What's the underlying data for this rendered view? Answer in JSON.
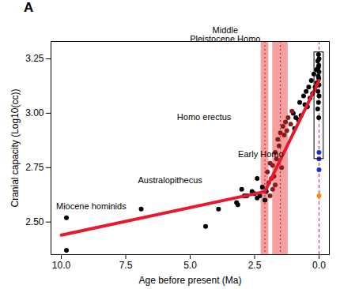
{
  "chart_data": {
    "type": "scatter",
    "title": "A",
    "x_label": "Age before present (Ma)",
    "y_label": "Cranial capacity (Log10(cc))",
    "xlim": [
      10.4,
      -0.4
    ],
    "ylim": [
      2.35,
      3.33
    ],
    "xticks": [
      {
        "value": 10,
        "label": "10.0"
      },
      7.5,
      {
        "value": 5,
        "label": "5.0"
      },
      2.5,
      {
        "value": 0,
        "label": "0.0"
      }
    ],
    "yticks": [
      {
        "value": 2.5,
        "label": "2.50"
      },
      2.75,
      {
        "value": 3,
        "label": "3.00"
      },
      3.25
    ],
    "grid": false,
    "series": [
      {
        "color": "#000000",
        "marker": "circle",
        "x": [
          9.8,
          9.8,
          6.9,
          4.4,
          3.9,
          3.2,
          3.15,
          3.0,
          2.9,
          2.8,
          2.6,
          2.5,
          2.4,
          2.4,
          2.3,
          2.2,
          2.1,
          2.05,
          1.0,
          0.95,
          0.9,
          0.8,
          0.75,
          0.7,
          0.6,
          0.55,
          0.5,
          0.45,
          0.4,
          0.35,
          0.3,
          0.25,
          0.2,
          0.15,
          0.1,
          0.08,
          0.05,
          0.04,
          0.03,
          0.02,
          0.02,
          0.01,
          0.01,
          0.0,
          0.0,
          0.0,
          0.0,
          0.01,
          0.03,
          0.05
        ],
        "values": [
          2.52,
          2.37,
          2.56,
          2.48,
          2.56,
          2.59,
          2.58,
          2.65,
          2.62,
          2.62,
          2.64,
          2.63,
          2.7,
          2.61,
          2.62,
          2.66,
          2.6,
          2.64,
          3.0,
          2.93,
          2.98,
          2.97,
          3.05,
          2.99,
          3.08,
          3.04,
          3.1,
          3.03,
          3.12,
          3.07,
          3.15,
          3.09,
          3.18,
          3.12,
          3.2,
          3.14,
          3.24,
          3.1,
          3.17,
          3.27,
          3.05,
          3.22,
          2.98,
          3.13,
          3.19,
          3.25,
          3.08,
          3.16,
          3.21,
          3.02
        ]
      },
      {
        "color": "#8b1a1a",
        "marker": "circle",
        "x": [
          2.0,
          1.95,
          1.9,
          1.9,
          1.85,
          1.8,
          1.8,
          1.75,
          1.7,
          1.7,
          1.65,
          1.6,
          1.55,
          1.5,
          1.45,
          1.4,
          1.35,
          1.3,
          1.25,
          1.2,
          1.1,
          1.05
        ],
        "values": [
          2.73,
          2.68,
          2.77,
          2.62,
          2.7,
          2.76,
          2.65,
          2.71,
          2.67,
          2.82,
          2.79,
          2.88,
          2.85,
          2.91,
          2.75,
          2.94,
          2.9,
          2.96,
          2.92,
          2.98,
          2.95,
          3.01
        ]
      },
      {
        "color": "#1f2fe0",
        "marker": "circle",
        "x": [
          0,
          0,
          0
        ],
        "values": [
          2.82,
          2.79,
          2.74
        ]
      },
      {
        "color": "#ff8c00",
        "marker": "circle",
        "x": [
          0
        ],
        "values": [
          2.62
        ]
      }
    ],
    "fit": {
      "color": "#e8192c",
      "x": [
        10,
        2.1,
        0
      ],
      "values": [
        2.44,
        2.64,
        3.15
      ]
    },
    "bands": [
      {
        "x1": 2.25,
        "x2": 1.95,
        "center": 2.1
      },
      {
        "x1": 1.8,
        "x2": 1.2,
        "center": 1.5
      }
    ],
    "band_color": "#f08080",
    "reference_line": 0,
    "inset_box": {
      "x1": 0.18,
      "x2": -0.18,
      "y1": 2.79,
      "y2": 3.28
    },
    "annotations": [
      {
        "text": "Middle\nPleistocene Homo",
        "x": 3.64,
        "y": 3.33
      },
      {
        "text": "Homo erectus",
        "x": 4.46,
        "y": 2.97
      },
      {
        "text": "Early Homo",
        "x": 2.26,
        "y": 2.8
      },
      {
        "text": "Australopithecus",
        "x": 5.78,
        "y": 2.68
      },
      {
        "text": "Miocene hominids",
        "x": 8.84,
        "y": 2.56
      }
    ]
  }
}
